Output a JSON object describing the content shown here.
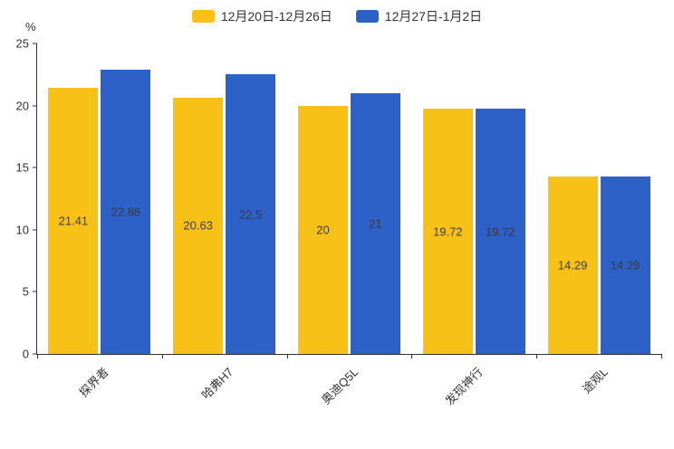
{
  "chart_data": {
    "type": "bar",
    "title": "",
    "categories": [
      "探界者",
      "哈弗H7",
      "奥迪Q5L",
      "发现神行",
      "途观L"
    ],
    "series": [
      {
        "name": "12月20日-12月26日",
        "color": "#F7C118",
        "values": [
          21.41,
          20.63,
          20,
          19.72,
          14.29
        ]
      },
      {
        "name": "12月27日-1月2日",
        "color": "#2E61C8",
        "values": [
          22.88,
          22.5,
          21,
          19.72,
          14.29
        ]
      }
    ],
    "xlabel": "",
    "ylabel": "%",
    "ylim": [
      0,
      25
    ],
    "yticks": [
      0,
      5,
      10,
      15,
      20,
      25
    ],
    "grid": false,
    "legend_position": "top",
    "value_labels_shown": true
  }
}
